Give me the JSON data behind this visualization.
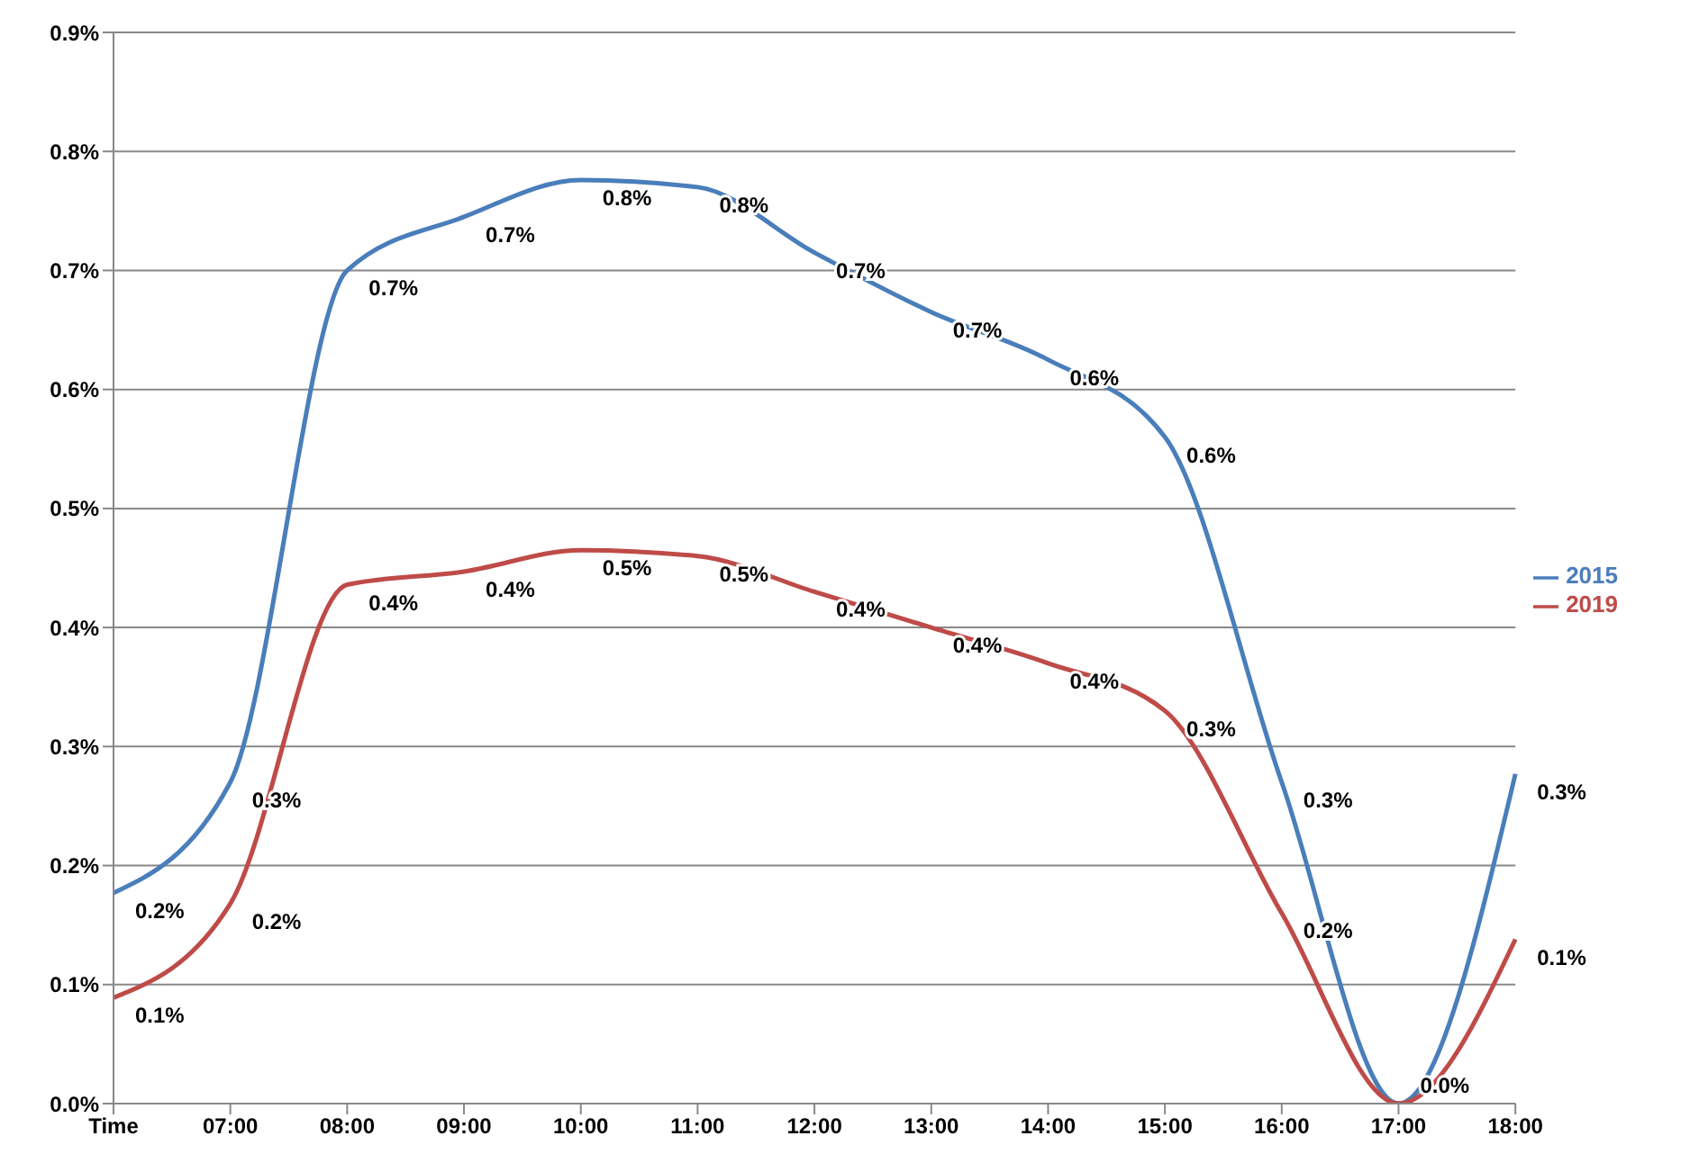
{
  "chart_data": {
    "type": "line",
    "categories": [
      "Time",
      "07:00",
      "08:00",
      "09:00",
      "10:00",
      "11:00",
      "12:00",
      "13:00",
      "14:00",
      "15:00",
      "16:00",
      "17:00",
      "18:00"
    ],
    "series": [
      {
        "name": "2015",
        "color": "#4a7ebb",
        "values": [
          0.177,
          0.27,
          0.7,
          0.745,
          0.776,
          0.77,
          0.715,
          0.665,
          0.625,
          0.56,
          0.27,
          0.0,
          0.277
        ],
        "value_labels": [
          "0.2%",
          "0.3%",
          "0.7%",
          "0.7%",
          "0.8%",
          "0.8%",
          "0.7%",
          "0.7%",
          "0.6%",
          "0.6%",
          "0.3%",
          "0.0%",
          "0.3%"
        ]
      },
      {
        "name": "2019",
        "color": "#be4b48",
        "values": [
          0.089,
          0.168,
          0.436,
          0.447,
          0.465,
          0.46,
          0.43,
          0.4,
          0.37,
          0.33,
          0.16,
          0.0,
          0.138
        ],
        "value_labels": [
          "0.1%",
          "0.2%",
          "0.4%",
          "0.4%",
          "0.5%",
          "0.5%",
          "0.4%",
          "0.4%",
          "0.4%",
          "0.3%",
          "0.2%",
          null,
          "0.1%"
        ]
      }
    ],
    "ylim": [
      0,
      0.9
    ],
    "yticks": [
      {
        "value": 0,
        "label": "0.0%"
      },
      {
        "value": 0.1,
        "label": "0.1%"
      },
      {
        "value": 0.2,
        "label": "0.2%"
      },
      {
        "value": 0.3,
        "label": "0.3%"
      },
      {
        "value": 0.4,
        "label": "0.4%"
      },
      {
        "value": 0.5,
        "label": "0.5%"
      },
      {
        "value": 0.6,
        "label": "0.6%"
      },
      {
        "value": 0.7,
        "label": "0.7%"
      },
      {
        "value": 0.8,
        "label": "0.8%"
      },
      {
        "value": 0.9,
        "label": "0.9%"
      }
    ],
    "grid": "y",
    "legend": "right",
    "marker": "none",
    "line_style": "solid"
  }
}
